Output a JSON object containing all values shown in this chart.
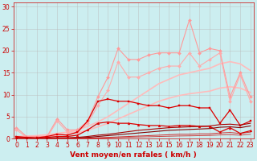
{
  "background_color": "#cceef0",
  "grid_color": "#bbbbbb",
  "xlabel": "Vent moyen/en rafales ( km/h )",
  "xlabel_color": "#cc0000",
  "xlabel_fontsize": 6.5,
  "tick_color": "#cc0000",
  "tick_fontsize": 5.5,
  "yticks": [
    0,
    5,
    10,
    15,
    20,
    25,
    30
  ],
  "xticks": [
    0,
    1,
    2,
    3,
    4,
    5,
    6,
    7,
    8,
    9,
    10,
    11,
    12,
    13,
    14,
    15,
    16,
    17,
    18,
    19,
    20,
    21,
    22,
    23
  ],
  "xlim": [
    -0.3,
    23.3
  ],
  "ylim": [
    0,
    31
  ],
  "series": [
    {
      "x": [
        0,
        1,
        2,
        3,
        4,
        5,
        6,
        7,
        8,
        9,
        10,
        11,
        12,
        13,
        14,
        15,
        16,
        17,
        18,
        19,
        20,
        21,
        22,
        23
      ],
      "y": [
        0.5,
        0.6,
        0.7,
        0.9,
        1.2,
        1.5,
        2.0,
        2.8,
        3.8,
        5.0,
        6.5,
        8.0,
        9.5,
        11.0,
        12.5,
        13.5,
        14.5,
        15.0,
        15.5,
        16.0,
        17.0,
        17.5,
        17.0,
        15.5
      ],
      "color": "#ffbbbb",
      "alpha": 1.0,
      "lw": 1.2,
      "marker": null,
      "ms": 0
    },
    {
      "x": [
        0,
        1,
        2,
        3,
        4,
        5,
        6,
        7,
        8,
        9,
        10,
        11,
        12,
        13,
        14,
        15,
        16,
        17,
        18,
        19,
        20,
        21,
        22,
        23
      ],
      "y": [
        0.3,
        0.4,
        0.5,
        0.6,
        0.8,
        1.0,
        1.4,
        1.9,
        2.7,
        3.5,
        4.5,
        5.5,
        6.5,
        7.5,
        8.5,
        9.2,
        9.8,
        10.2,
        10.5,
        10.8,
        11.5,
        11.8,
        11.5,
        10.5
      ],
      "color": "#ffbbbb",
      "alpha": 1.0,
      "lw": 1.2,
      "marker": null,
      "ms": 0
    },
    {
      "x": [
        0,
        1,
        2,
        3,
        4,
        5,
        6,
        7,
        8,
        9,
        10,
        11,
        12,
        13,
        14,
        15,
        16,
        17,
        18,
        19,
        20,
        21,
        22,
        23
      ],
      "y": [
        2.5,
        0.5,
        0.5,
        0.5,
        4.5,
        2.0,
        2.0,
        4.0,
        9.5,
        14.0,
        20.5,
        18.0,
        18.0,
        19.0,
        19.5,
        19.5,
        19.5,
        27.0,
        19.5,
        20.5,
        20.0,
        9.5,
        15.0,
        9.5
      ],
      "color": "#ff9999",
      "alpha": 1.0,
      "lw": 0.8,
      "marker": "D",
      "ms": 2.0
    },
    {
      "x": [
        0,
        1,
        2,
        3,
        4,
        5,
        6,
        7,
        8,
        9,
        10,
        11,
        12,
        13,
        14,
        15,
        16,
        17,
        18,
        19,
        20,
        21,
        22,
        23
      ],
      "y": [
        2.0,
        0.3,
        0.3,
        0.3,
        4.0,
        1.5,
        1.5,
        3.5,
        7.5,
        11.0,
        17.5,
        14.0,
        14.0,
        15.0,
        16.0,
        16.5,
        16.5,
        19.5,
        16.5,
        18.0,
        19.5,
        8.5,
        14.5,
        8.5
      ],
      "color": "#ffaaaa",
      "alpha": 1.0,
      "lw": 0.8,
      "marker": "D",
      "ms": 2.0
    },
    {
      "x": [
        0,
        1,
        2,
        3,
        4,
        5,
        6,
        7,
        8,
        9,
        10,
        11,
        12,
        13,
        14,
        15,
        16,
        17,
        18,
        19,
        20,
        21,
        22,
        23
      ],
      "y": [
        0.5,
        0.3,
        0.2,
        0.5,
        1.0,
        0.8,
        1.5,
        4.0,
        8.5,
        9.0,
        8.5,
        8.5,
        8.0,
        7.5,
        7.5,
        7.0,
        7.5,
        7.5,
        7.0,
        7.0,
        3.5,
        6.5,
        3.0,
        4.0
      ],
      "color": "#dd0000",
      "alpha": 1.0,
      "lw": 0.9,
      "marker": "s",
      "ms": 2.0
    },
    {
      "x": [
        0,
        1,
        2,
        3,
        4,
        5,
        6,
        7,
        8,
        9,
        10,
        11,
        12,
        13,
        14,
        15,
        16,
        17,
        18,
        19,
        20,
        21,
        22,
        23
      ],
      "y": [
        0.3,
        0.2,
        0.1,
        0.3,
        0.5,
        0.5,
        0.8,
        2.0,
        3.5,
        3.8,
        3.5,
        3.5,
        3.2,
        3.0,
        3.0,
        2.8,
        3.0,
        3.0,
        2.8,
        2.8,
        1.5,
        2.5,
        1.2,
        1.8
      ],
      "color": "#dd0000",
      "alpha": 1.0,
      "lw": 0.9,
      "marker": "^",
      "ms": 2.0
    },
    {
      "x": [
        0,
        1,
        2,
        3,
        4,
        5,
        6,
        7,
        8,
        9,
        10,
        11,
        12,
        13,
        14,
        15,
        16,
        17,
        18,
        19,
        20,
        21,
        22,
        23
      ],
      "y": [
        0.1,
        0.1,
        0.1,
        0.1,
        0.2,
        0.2,
        0.3,
        0.5,
        0.8,
        1.0,
        1.3,
        1.6,
        1.9,
        2.1,
        2.3,
        2.5,
        2.6,
        2.7,
        2.8,
        2.9,
        3.2,
        3.3,
        3.1,
        3.5
      ],
      "color": "#aa0000",
      "alpha": 1.0,
      "lw": 0.8,
      "marker": null,
      "ms": 0
    },
    {
      "x": [
        0,
        1,
        2,
        3,
        4,
        5,
        6,
        7,
        8,
        9,
        10,
        11,
        12,
        13,
        14,
        15,
        16,
        17,
        18,
        19,
        20,
        21,
        22,
        23
      ],
      "y": [
        0.05,
        0.05,
        0.05,
        0.05,
        0.1,
        0.1,
        0.2,
        0.3,
        0.5,
        0.7,
        0.9,
        1.1,
        1.3,
        1.5,
        1.7,
        1.9,
        2.0,
        2.1,
        2.2,
        2.3,
        2.6,
        2.7,
        2.5,
        2.9
      ],
      "color": "#880000",
      "alpha": 1.0,
      "lw": 0.8,
      "marker": null,
      "ms": 0
    },
    {
      "x": [
        0,
        1,
        2,
        3,
        4,
        5,
        6,
        7,
        8,
        9,
        10,
        11,
        12,
        13,
        14,
        15,
        16,
        17,
        18,
        19,
        20,
        21,
        22,
        23
      ],
      "y": [
        0.02,
        0.02,
        0.02,
        0.02,
        0.05,
        0.05,
        0.08,
        0.12,
        0.2,
        0.3,
        0.4,
        0.5,
        0.6,
        0.7,
        0.8,
        0.9,
        1.0,
        1.0,
        1.1,
        1.1,
        1.3,
        1.4,
        1.2,
        1.5
      ],
      "color": "#cc0000",
      "alpha": 0.8,
      "lw": 0.7,
      "marker": null,
      "ms": 0
    },
    {
      "x": [
        0,
        1,
        2,
        3,
        4,
        5,
        6,
        7,
        8,
        9,
        10,
        11,
        12,
        13,
        14,
        15,
        16,
        17,
        18,
        19,
        20,
        21,
        22,
        23
      ],
      "y": [
        0.01,
        0.01,
        0.01,
        0.01,
        0.02,
        0.03,
        0.05,
        0.08,
        0.12,
        0.18,
        0.25,
        0.32,
        0.38,
        0.44,
        0.5,
        0.56,
        0.62,
        0.65,
        0.7,
        0.74,
        0.85,
        0.9,
        0.8,
        1.0
      ],
      "color": "#cc0000",
      "alpha": 0.7,
      "lw": 0.7,
      "marker": null,
      "ms": 0
    }
  ]
}
